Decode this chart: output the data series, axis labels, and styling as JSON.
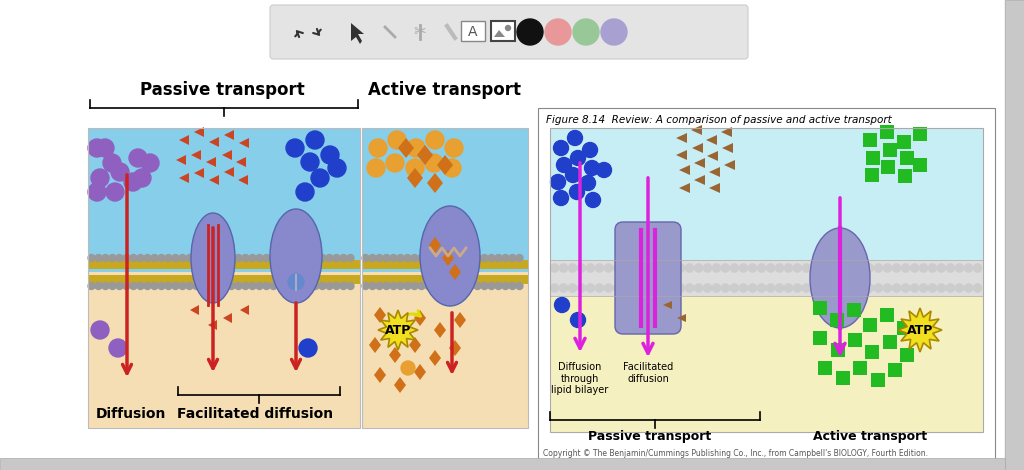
{
  "bg_color": "#f0f0f0",
  "page_color": "#ffffff",
  "toolbar_bg": "#e4e4e4",
  "toolbar_border": "#cccccc",
  "left_diagram_bg": "#f5deb3",
  "left_diagram_top": "#87ceeb",
  "right_diagram_bg": "#f5deb3",
  "right_diagram_top": "#87ceeb",
  "figure_box_bg": "#ffffff",
  "figure_top_bg": "#c8eef5",
  "figure_bot_bg": "#f5f0c0",
  "passive_label": "Passive transport",
  "active_label": "Active transport",
  "diffusion_label": "Diffusion",
  "facilitated_label": "Facilitated diffusion",
  "figure_title": "Figure 8.14  Review: A comparison of passive and active transport",
  "passive_transport_label": "Passive transport",
  "active_transport_label2": "Active transport",
  "diffusion_through": "Diffusion\nthrough\nlipid bilayer",
  "facilitated_diffusion2": "Facilitated\ndiffusion",
  "copyright": "Copyright © The Benjamin/Cummings Publishing Co., Inc., from Campbell's BIOLOGY, Fourth Edition.",
  "atp_label": "ATP",
  "purple_color": "#9060c0",
  "orange_color": "#e8a030",
  "orange_diamond": "#d07018",
  "blue_color": "#2040cc",
  "green_color": "#22bb22",
  "membrane_gray": "#aaaaaa",
  "membrane_tail": "#d4b840",
  "protein_color": "#8888cc",
  "protein_edge": "#5566aa",
  "red_arrow": "#cc2222",
  "magenta_arrow": "#dd22dd",
  "tri_color": "#cc4422",
  "brown_tri": "#996633",
  "atp_yellow": "#f0e020",
  "atp_edge": "#aa8800",
  "scrollbar_color": "#c8c8c8",
  "scrollbar_btn": "#a0a0a0"
}
